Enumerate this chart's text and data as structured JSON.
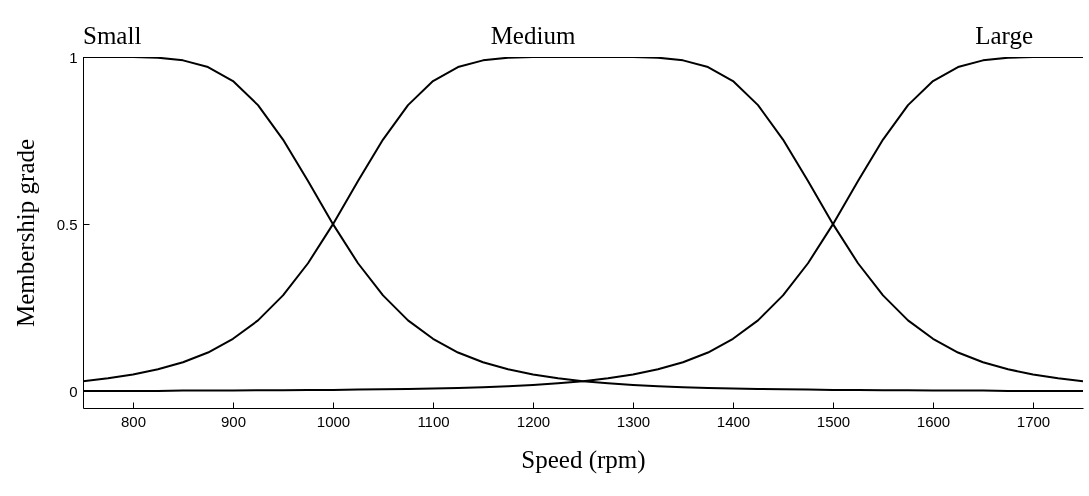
{
  "chart_data": {
    "type": "line",
    "xlabel": "Speed (rpm)",
    "ylabel": "Membership grade",
    "x": [
      750,
      775,
      800,
      825,
      850,
      875,
      900,
      925,
      950,
      975,
      1000,
      1025,
      1050,
      1075,
      1100,
      1125,
      1150,
      1175,
      1200,
      1225,
      1250,
      1275,
      1300,
      1325,
      1350,
      1375,
      1400,
      1425,
      1450,
      1475,
      1500,
      1525,
      1550,
      1575,
      1600,
      1625,
      1650,
      1675,
      1700,
      1725,
      1750
    ],
    "xlim": [
      750,
      1750
    ],
    "xticks": [
      800,
      900,
      1000,
      1100,
      1200,
      1300,
      1400,
      1500,
      1600,
      1700
    ],
    "ylim": [
      -0.05,
      1
    ],
    "yticks": [
      0,
      0.5,
      1
    ],
    "series": [
      {
        "name": "Small",
        "color": "#000000",
        "values": [
          1,
          1,
          1,
          0.998,
          0.99,
          0.97,
          0.928,
          0.856,
          0.753,
          0.629,
          0.5,
          0.383,
          0.287,
          0.212,
          0.157,
          0.116,
          0.087,
          0.066,
          0.05,
          0.039,
          0.03,
          0.024,
          0.019,
          0.015,
          0.012,
          0.01,
          0.008,
          0.007,
          0.006,
          0.005,
          0.004,
          0.004,
          0.003,
          0.003,
          0.002,
          0.002,
          0.002,
          0.001,
          0.001,
          0.001,
          0.001
        ]
      },
      {
        "name": "Medium",
        "color": "#000000",
        "values": [
          0.03,
          0.039,
          0.05,
          0.066,
          0.087,
          0.116,
          0.157,
          0.212,
          0.287,
          0.383,
          0.5,
          0.629,
          0.753,
          0.856,
          0.928,
          0.97,
          0.99,
          0.998,
          1,
          1,
          1,
          1,
          1,
          0.998,
          0.99,
          0.97,
          0.928,
          0.856,
          0.753,
          0.629,
          0.5,
          0.383,
          0.287,
          0.212,
          0.157,
          0.116,
          0.087,
          0.066,
          0.05,
          0.039,
          0.03
        ]
      },
      {
        "name": "Large",
        "color": "#000000",
        "values": [
          0.001,
          0.001,
          0.001,
          0.001,
          0.002,
          0.002,
          0.002,
          0.003,
          0.003,
          0.004,
          0.004,
          0.005,
          0.006,
          0.007,
          0.008,
          0.01,
          0.012,
          0.015,
          0.019,
          0.024,
          0.03,
          0.039,
          0.05,
          0.066,
          0.087,
          0.116,
          0.157,
          0.212,
          0.287,
          0.383,
          0.5,
          0.629,
          0.753,
          0.856,
          0.928,
          0.97,
          0.99,
          0.998,
          1,
          1,
          1
        ]
      }
    ]
  }
}
